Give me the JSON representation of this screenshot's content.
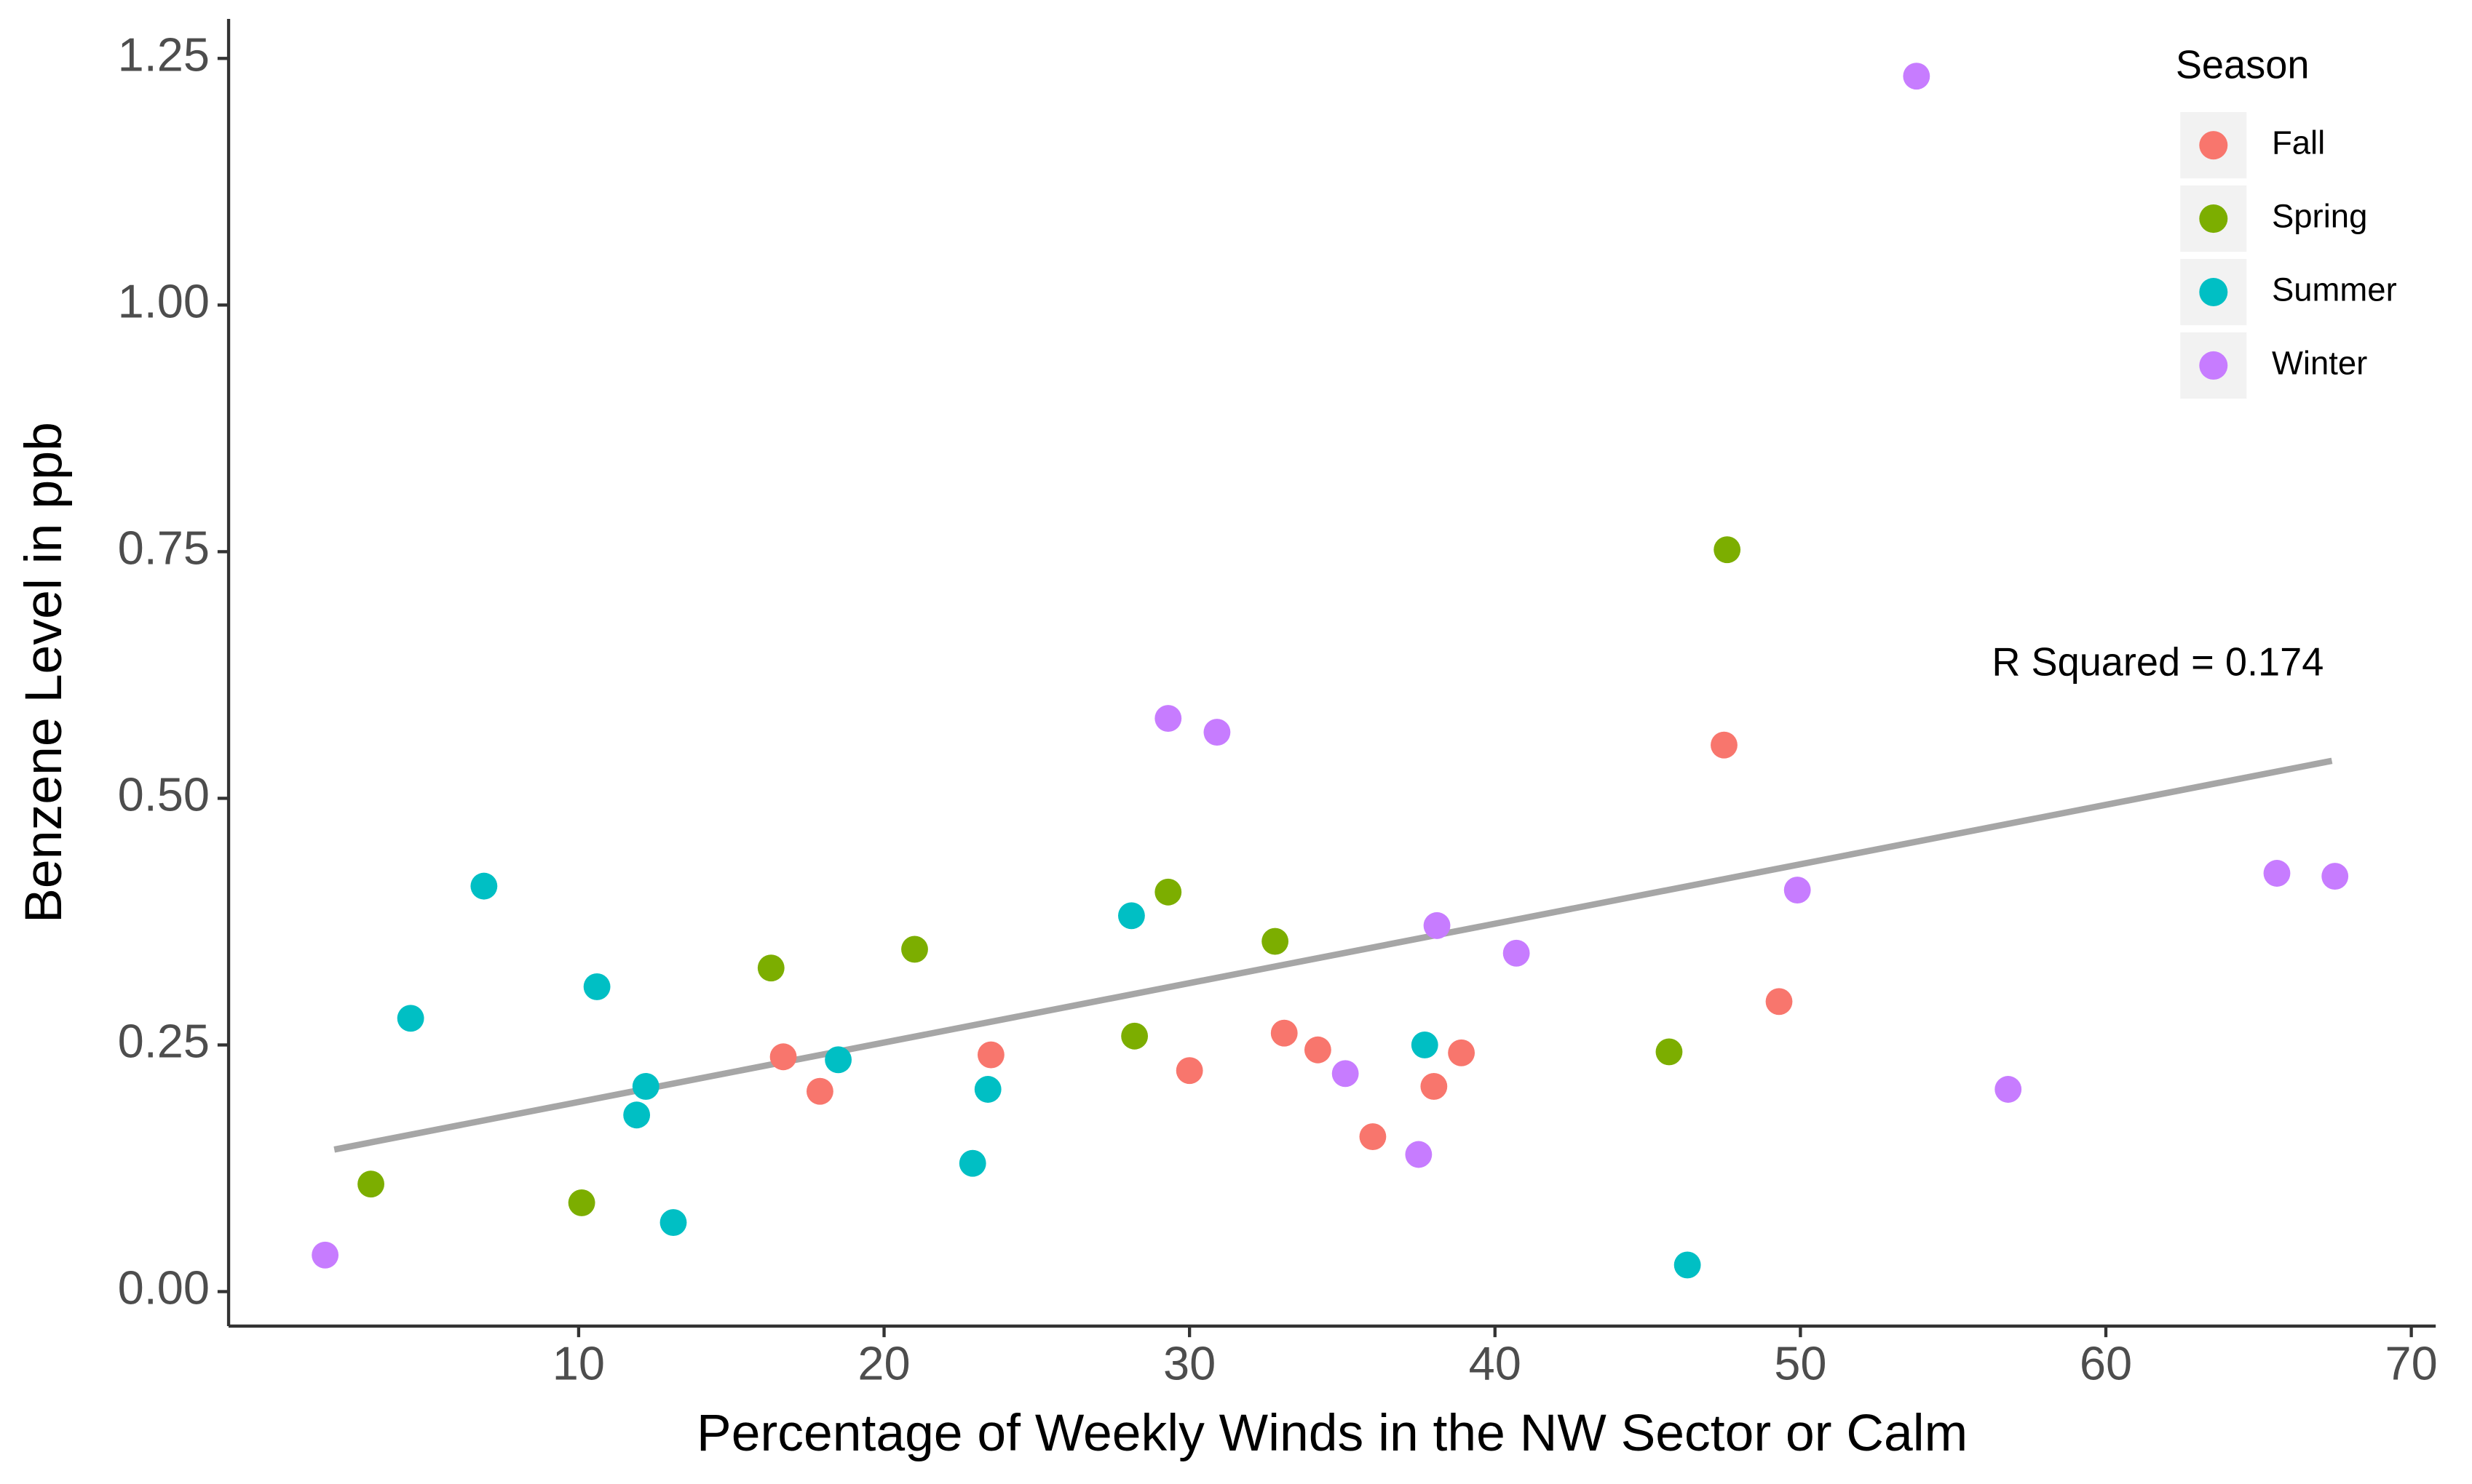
{
  "chart_data": {
    "type": "scatter",
    "x_label": "Percentage of Weekly Winds in the NW Sector or Calm",
    "y_label": "Benzene Level in ppb",
    "xlim": [
      -1.46,
      70.8
    ],
    "ylim": [
      -0.035,
      1.29
    ],
    "xticks": [
      10,
      20,
      30,
      40,
      50,
      60,
      70
    ],
    "yticks": [
      {
        "value": 0,
        "label": "0.00"
      },
      {
        "value": 0.25,
        "label": "0.25"
      },
      {
        "value": 0.5,
        "label": "0.50"
      },
      {
        "value": 0.75,
        "label": "0.75"
      },
      {
        "value": 1,
        "label": "1.00"
      },
      {
        "value": 1.25,
        "label": "1.25"
      }
    ],
    "grid": false,
    "legend_title": "Season",
    "legend_position": "top-right",
    "series": [
      {
        "name": "Fall",
        "color": "#F8766D",
        "x": [
          16.7,
          17.9,
          23.5,
          30.0,
          33.1,
          34.2,
          36.0,
          38.0,
          38.9,
          47.5,
          49.3
        ],
        "values": [
          0.238,
          0.203,
          0.24,
          0.224,
          0.262,
          0.245,
          0.157,
          0.208,
          0.242,
          0.554,
          0.294
        ]
      },
      {
        "name": "Spring",
        "color": "#7CAE00",
        "x": [
          3.2,
          10.1,
          16.3,
          21.0,
          28.2,
          29.3,
          32.8,
          45.7,
          47.6
        ],
        "values": [
          0.109,
          0.09,
          0.328,
          0.347,
          0.259,
          0.405,
          0.355,
          0.243,
          0.752
        ]
      },
      {
        "name": "Summer",
        "color": "#00BFC4",
        "x": [
          4.5,
          6.9,
          10.6,
          11.9,
          12.2,
          13.1,
          18.5,
          22.9,
          23.4,
          28.1,
          37.7,
          46.3
        ],
        "values": [
          0.277,
          0.411,
          0.309,
          0.179,
          0.208,
          0.07,
          0.235,
          0.13,
          0.205,
          0.381,
          0.25,
          0.027
        ]
      },
      {
        "name": "Winter",
        "color": "#C77CFF",
        "x": [
          1.7,
          29.3,
          30.9,
          35.1,
          37.5,
          38.1,
          40.7,
          49.9,
          53.8,
          56.8,
          65.6,
          67.5
        ],
        "values": [
          0.037,
          0.581,
          0.567,
          0.221,
          0.139,
          0.371,
          0.343,
          0.407,
          1.232,
          0.205,
          0.424,
          0.421
        ]
      }
    ],
    "trend_line": {
      "color": "#A6A6A6",
      "x": [
        2.0,
        67.4
      ],
      "values": [
        0.144,
        0.538
      ]
    },
    "annotation": {
      "text": "R Squared = 0.174",
      "x": 61.7,
      "y": 0.635
    }
  }
}
